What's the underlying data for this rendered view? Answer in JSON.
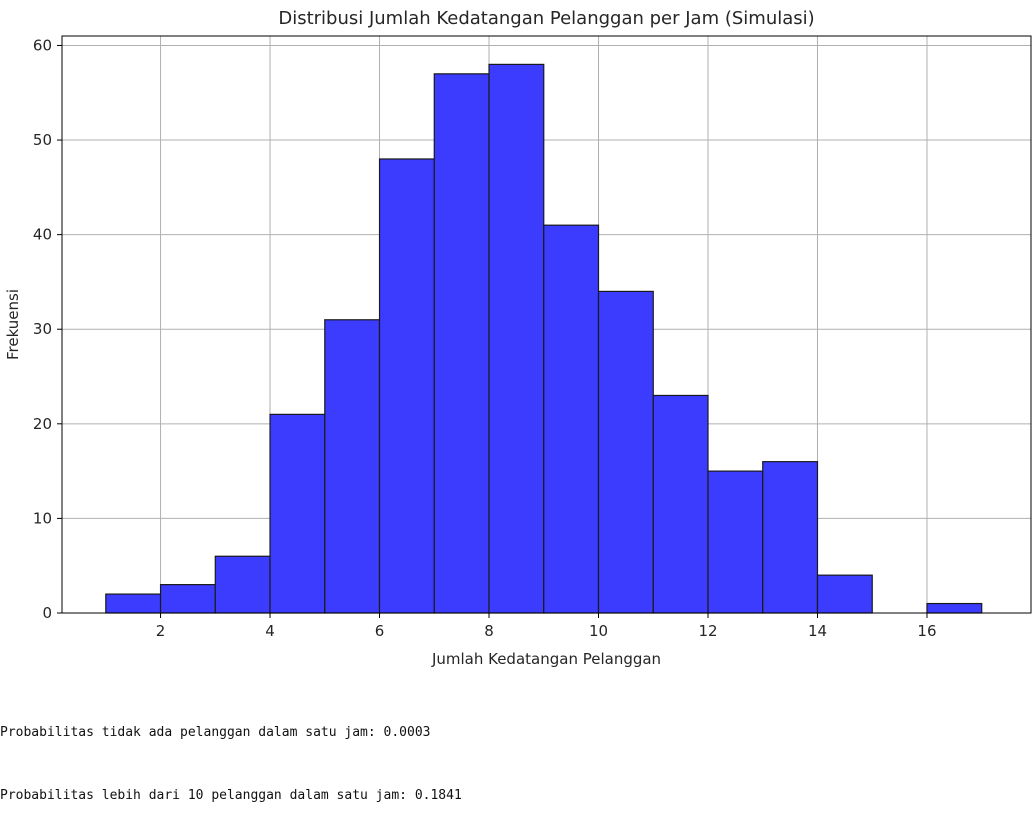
{
  "chart_data": {
    "type": "bar",
    "title": "Distribusi Jumlah Kedatangan Pelanggan per Jam (Simulasi)",
    "xlabel": "Jumlah Kedatangan Pelanggan",
    "ylabel": "Frekuensi",
    "bin_edges": [
      1,
      2,
      3,
      4,
      5,
      6,
      7,
      8,
      9,
      10,
      11,
      12,
      13,
      14,
      15,
      16,
      17
    ],
    "values": [
      2,
      3,
      6,
      21,
      31,
      48,
      57,
      58,
      41,
      34,
      23,
      15,
      16,
      4,
      0,
      1
    ],
    "xlim": [
      0.2,
      17.9
    ],
    "ylim": [
      0,
      61
    ],
    "xticks": [
      2,
      4,
      6,
      8,
      10,
      12,
      14,
      16
    ],
    "yticks": [
      0,
      10,
      20,
      30,
      40,
      50,
      60
    ],
    "grid": true,
    "bar_color": "#3c3cff",
    "edge_color": "#1a1a1a",
    "grid_color": "#b0b0b0"
  },
  "output": {
    "lines": [
      "Probabilitas tidak ada pelanggan dalam satu jam: 0.0003",
      "Probabilitas lebih dari 10 pelanggan dalam satu jam: 0.1841"
    ]
  }
}
